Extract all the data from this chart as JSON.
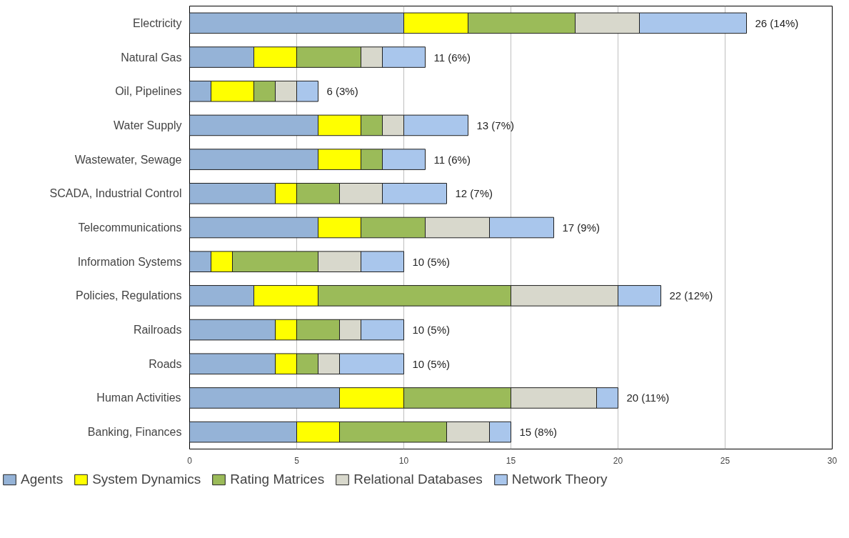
{
  "chart_data": {
    "type": "bar",
    "orientation": "horizontal",
    "stacked": true,
    "categories": [
      "Electricity",
      "Natural Gas",
      "Oil, Pipelines",
      "Water Supply",
      "Wastewater, Sewage",
      "SCADA, Industrial Control",
      "Telecommunications",
      "Information Systems",
      "Policies, Regulations",
      "Railroads",
      "Roads",
      "Human Activities",
      "Banking, Finances"
    ],
    "series": [
      {
        "name": "Agents",
        "color": "#95b3d7",
        "values": [
          10,
          3,
          1,
          6,
          6,
          4,
          6,
          1,
          3,
          4,
          4,
          7,
          5
        ]
      },
      {
        "name": "System Dynamics",
        "color": "#ffff00",
        "values": [
          3,
          2,
          2,
          2,
          2,
          1,
          2,
          1,
          3,
          1,
          1,
          3,
          2
        ]
      },
      {
        "name": "Rating Matrices",
        "color": "#9bbb59",
        "values": [
          5,
          3,
          1,
          1,
          1,
          2,
          3,
          4,
          9,
          2,
          1,
          5,
          5
        ]
      },
      {
        "name": "Relational Databases",
        "color": "#d8d8cc",
        "values": [
          3,
          1,
          1,
          1,
          0,
          2,
          3,
          2,
          5,
          1,
          1,
          4,
          2
        ]
      },
      {
        "name": "Network Theory",
        "color": "#a9c6ec",
        "values": [
          5,
          2,
          1,
          3,
          2,
          3,
          3,
          2,
          2,
          2,
          3,
          1,
          1
        ]
      }
    ],
    "totals": [
      "26 (14%)",
      "11 (6%)",
      "6 (3%)",
      "13 (7%)",
      "11 (6%)",
      "12 (7%)",
      "17 (9%)",
      "10 (5%)",
      "22 (12%)",
      "10 (5%)",
      "10 (5%)",
      "20 (11%)",
      "15 (8%)"
    ],
    "xlim": [
      0,
      30
    ],
    "xticks": [
      0,
      5,
      10,
      15,
      20,
      25,
      30
    ],
    "grid": "x",
    "legend": "bottom"
  }
}
